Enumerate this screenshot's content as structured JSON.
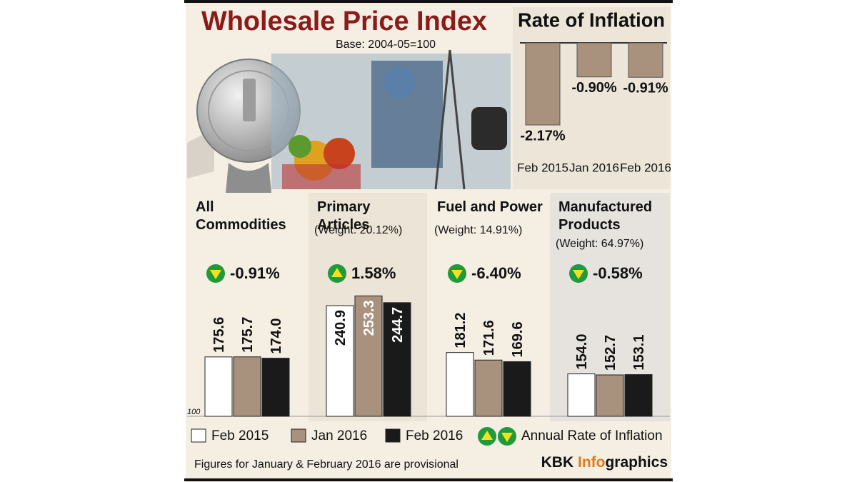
{
  "header": {
    "title": "Wholesale Price Index",
    "subtitle": "Base: 2004-05=100"
  },
  "chart_data": [
    {
      "type": "bar",
      "title": "Rate of Inflation",
      "categories": [
        "Feb 2015",
        "Jan 2016",
        "Feb 2016"
      ],
      "values": [
        -2.17,
        -0.9,
        -0.91
      ],
      "value_labels": [
        "-2.17%",
        "-0.90%",
        "-0.91%"
      ],
      "color": "#a8917d"
    },
    {
      "type": "grouped-bar",
      "categories": [
        "All Commodities",
        "Primary Articles",
        "Fuel and Power",
        "Manufactured Products"
      ],
      "weights": [
        null,
        "(Weight: 20.12%)",
        "(Weight: 14.91%)",
        "(Weight: 64.97%)"
      ],
      "change": {
        "name": "Annual Rate of Inflation",
        "values": [
          -0.91,
          1.58,
          -6.4,
          -0.58
        ],
        "value_labels": [
          "-0.91%",
          "1.58%",
          "-6.40%",
          "-0.58%"
        ]
      },
      "series": [
        {
          "name": "Feb 2015",
          "color": "#ffffff",
          "values": [
            175.6,
            240.9,
            181.2,
            154.0
          ],
          "value_labels": [
            "175.6",
            "240.9",
            "181.2",
            "154.0"
          ]
        },
        {
          "name": "Jan 2016",
          "color": "#a8917d",
          "values": [
            175.7,
            253.3,
            171.6,
            152.7
          ],
          "value_labels": [
            "175.7",
            "253.3",
            "171.6",
            "152.7"
          ]
        },
        {
          "name": "Feb 2016",
          "color": "#1a1a1a",
          "values": [
            174.0,
            244.7,
            169.6,
            153.1
          ],
          "value_labels": [
            "174.0",
            "244.7",
            "169.6",
            "153.1"
          ]
        }
      ],
      "ylim": [
        100,
        300
      ],
      "yticks": [
        100
      ]
    }
  ],
  "footnote": "Figures for January & February 2016 are provisional",
  "credit": {
    "brand": "KBK",
    "highlight": "Info",
    "rest": "graphics"
  }
}
